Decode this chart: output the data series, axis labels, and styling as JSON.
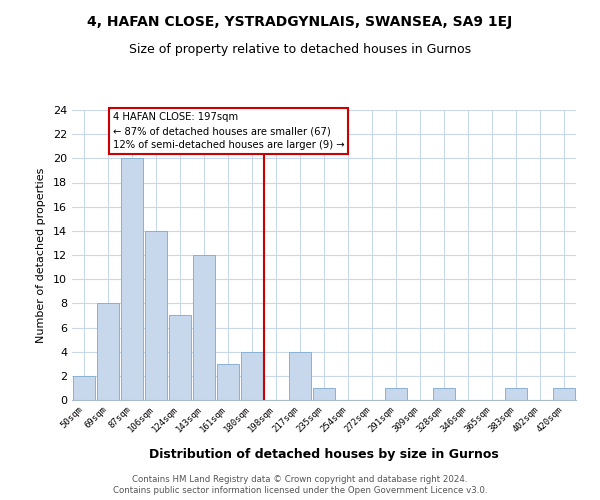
{
  "title": "4, HAFAN CLOSE, YSTRADGYNLAIS, SWANSEA, SA9 1EJ",
  "subtitle": "Size of property relative to detached houses in Gurnos",
  "xlabel": "Distribution of detached houses by size in Gurnos",
  "ylabel": "Number of detached properties",
  "bar_color": "#c8d8ec",
  "bar_edge_color": "#8ab0d0",
  "grid_color": "#c8d8e8",
  "annotation_line_color": "#cc0000",
  "annotation_box_edge": "#cc0000",
  "bg_color": "#ffffff",
  "bin_labels": [
    "50sqm",
    "69sqm",
    "87sqm",
    "106sqm",
    "124sqm",
    "143sqm",
    "161sqm",
    "180sqm",
    "198sqm",
    "217sqm",
    "235sqm",
    "254sqm",
    "272sqm",
    "291sqm",
    "309sqm",
    "328sqm",
    "346sqm",
    "365sqm",
    "383sqm",
    "402sqm",
    "420sqm"
  ],
  "bar_heights": [
    2,
    8,
    20,
    14,
    7,
    12,
    3,
    4,
    0,
    4,
    1,
    0,
    0,
    1,
    0,
    1,
    0,
    0,
    1,
    0,
    1
  ],
  "property_line_x": 8,
  "annotation_title": "4 HAFAN CLOSE: 197sqm",
  "annotation_line1": "← 87% of detached houses are smaller (67)",
  "annotation_line2": "12% of semi-detached houses are larger (9) →",
  "ylim": [
    0,
    24
  ],
  "yticks": [
    0,
    2,
    4,
    6,
    8,
    10,
    12,
    14,
    16,
    18,
    20,
    22,
    24
  ],
  "footer1": "Contains HM Land Registry data © Crown copyright and database right 2024.",
  "footer2": "Contains public sector information licensed under the Open Government Licence v3.0."
}
